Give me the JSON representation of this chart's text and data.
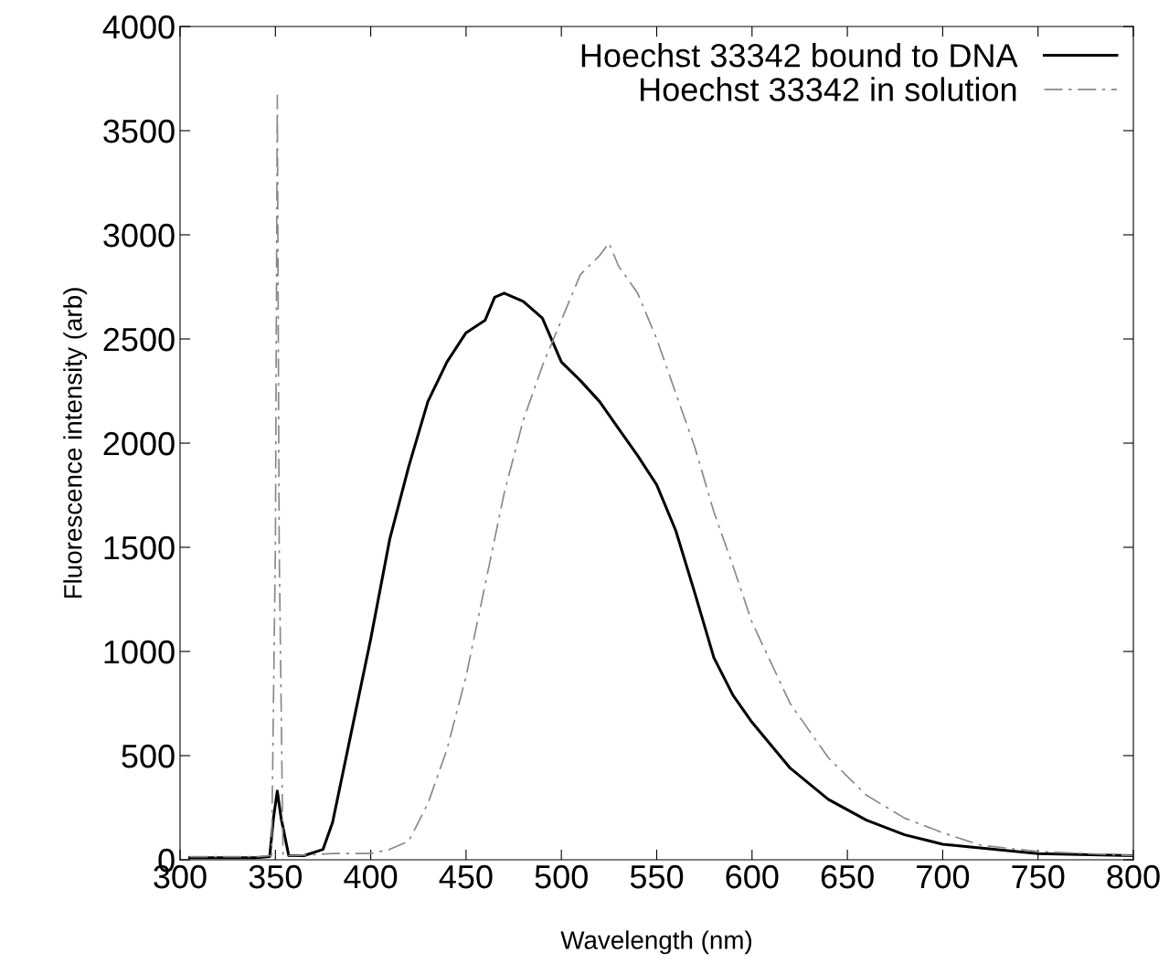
{
  "chart_data": {
    "type": "line",
    "xlabel": "Wavelength (nm)",
    "ylabel": "Fluorescence intensity (arb)",
    "xlim": [
      300,
      800
    ],
    "ylim": [
      0,
      4000
    ],
    "xticks": [
      300,
      350,
      400,
      450,
      500,
      550,
      600,
      650,
      700,
      750,
      800
    ],
    "yticks": [
      0,
      500,
      1000,
      1500,
      2000,
      2500,
      3000,
      3500,
      4000
    ],
    "grid": false,
    "legend": "top right",
    "marker": "none",
    "series": [
      {
        "name": "Hoechst 33342 bound to DNA",
        "color": "#000000",
        "line_style": "solid",
        "x": [
          305,
          320,
          340,
          347,
          349,
          351,
          353,
          357,
          365,
          375,
          380,
          390,
          400,
          410,
          420,
          430,
          440,
          450,
          460,
          465,
          470,
          480,
          490,
          500,
          510,
          520,
          530,
          540,
          550,
          560,
          570,
          580,
          590,
          600,
          620,
          640,
          660,
          680,
          700,
          750,
          800
        ],
        "values": [
          10,
          10,
          10,
          15,
          200,
          330,
          200,
          20,
          20,
          50,
          180,
          620,
          1060,
          1540,
          1890,
          2200,
          2390,
          2530,
          2590,
          2700,
          2720,
          2680,
          2600,
          2390,
          2300,
          2200,
          2070,
          1940,
          1800,
          1580,
          1280,
          970,
          790,
          660,
          440,
          290,
          190,
          120,
          75,
          30,
          20
        ]
      },
      {
        "name": "Hoechst 33342 in solution",
        "color": "#888888",
        "line_style": "dashed",
        "x": [
          305,
          320,
          340,
          348,
          350,
          351,
          352,
          354,
          360,
          380,
          400,
          410,
          420,
          430,
          440,
          450,
          460,
          470,
          480,
          490,
          500,
          510,
          520,
          525,
          530,
          540,
          550,
          560,
          570,
          580,
          590,
          600,
          620,
          640,
          660,
          680,
          700,
          720,
          750,
          800
        ],
        "values": [
          15,
          15,
          15,
          20,
          1500,
          3670,
          1500,
          20,
          20,
          30,
          30,
          50,
          90,
          270,
          530,
          880,
          1320,
          1760,
          2110,
          2370,
          2590,
          2810,
          2900,
          2960,
          2850,
          2720,
          2500,
          2240,
          1980,
          1670,
          1410,
          1140,
          750,
          490,
          310,
          200,
          130,
          70,
          40,
          20
        ]
      }
    ]
  }
}
